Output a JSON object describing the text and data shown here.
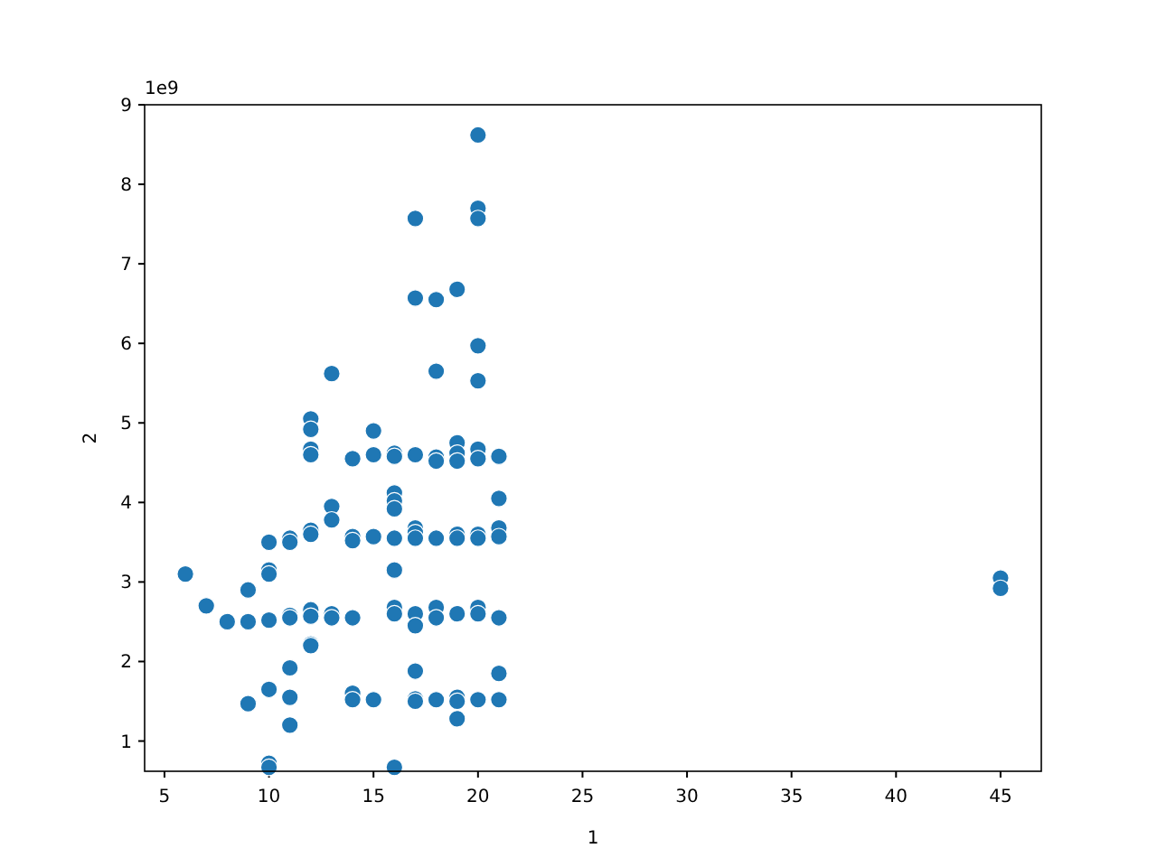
{
  "chart_data": {
    "type": "scatter",
    "xlabel": "1",
    "ylabel": "2",
    "annotations": [
      "1e9"
    ],
    "marker": "circle",
    "xlim": [
      4.05,
      46.95
    ],
    "xticks": [
      5,
      10,
      15,
      20,
      25,
      30,
      35,
      40,
      45
    ],
    "ylim": [
      0.62,
      9
    ],
    "yticks": [
      1,
      2,
      3,
      4,
      5,
      6,
      7,
      8,
      9
    ],
    "series": [
      {
        "color": "#1f77b4",
        "x": [
          6,
          7,
          8,
          9,
          9,
          9,
          10,
          10,
          10,
          10,
          10,
          10,
          10,
          11,
          11,
          11,
          11,
          11,
          11,
          11,
          12,
          12,
          12,
          12,
          12,
          12,
          12,
          12,
          12,
          12,
          13,
          13,
          13,
          13,
          13,
          14,
          14,
          14,
          14,
          14,
          14,
          15,
          15,
          15,
          15,
          16,
          16,
          16,
          16,
          16,
          16,
          16,
          16,
          16,
          16,
          17,
          17,
          17,
          17,
          17,
          17,
          17,
          17,
          17,
          17,
          17,
          18,
          18,
          18,
          18,
          18,
          18,
          18,
          18,
          19,
          19,
          19,
          19,
          19,
          19,
          19,
          19,
          19,
          19,
          20,
          20,
          20,
          20,
          20,
          20,
          20,
          20,
          20,
          20,
          20,
          20,
          21,
          21,
          21,
          21,
          21,
          21,
          21,
          45,
          45
        ],
        "values": [
          3.1,
          2.7,
          2.5,
          2.9,
          2.5,
          1.47,
          3.5,
          3.15,
          3.1,
          2.52,
          1.65,
          0.72,
          0.67,
          3.55,
          3.5,
          2.58,
          2.55,
          1.92,
          1.55,
          1.2,
          5.05,
          4.92,
          4.67,
          4.6,
          3.65,
          3.6,
          2.65,
          2.57,
          2.22,
          2.2,
          5.62,
          3.95,
          3.78,
          2.6,
          2.55,
          4.55,
          3.57,
          3.52,
          2.55,
          1.6,
          1.52,
          4.9,
          4.6,
          3.57,
          1.52,
          4.62,
          4.58,
          4.12,
          4.02,
          3.92,
          3.55,
          3.15,
          2.68,
          2.6,
          0.67,
          7.57,
          6.57,
          4.6,
          3.68,
          3.62,
          3.55,
          2.6,
          2.45,
          1.88,
          1.53,
          1.5,
          6.55,
          5.65,
          4.57,
          4.52,
          3.55,
          2.68,
          2.55,
          1.52,
          6.68,
          4.75,
          4.62,
          4.52,
          3.6,
          3.55,
          2.6,
          1.55,
          1.5,
          1.28,
          8.62,
          7.7,
          7.57,
          5.97,
          5.53,
          4.67,
          4.55,
          3.6,
          3.55,
          2.68,
          2.6,
          1.52,
          4.58,
          4.05,
          3.68,
          3.57,
          2.55,
          1.85,
          1.52,
          3.05,
          2.92
        ]
      }
    ]
  }
}
